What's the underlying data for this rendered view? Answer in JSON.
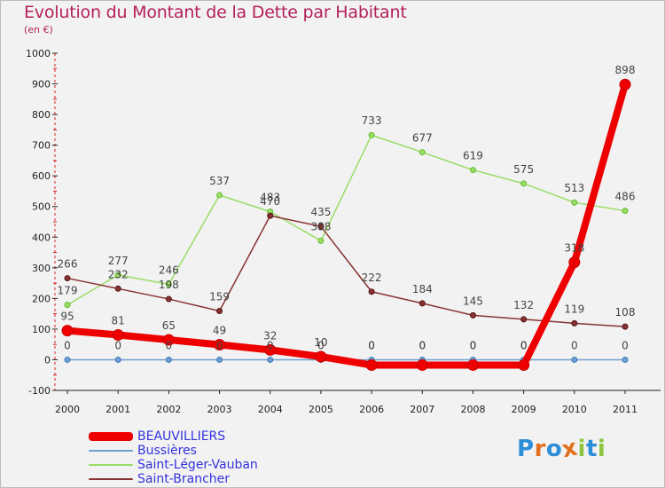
{
  "header": {
    "title": "Evolution du Montant de la Dette par Habitant",
    "subtitle": "(en €)"
  },
  "logo": {
    "text": "Proxiti",
    "letter_colors": [
      "#2d8ed8",
      "#e1711e",
      "#2d8ed8",
      "#e1711e",
      "#8dc63f",
      "#2d8ed8",
      "#8dc63f"
    ]
  },
  "chart_data": {
    "type": "line",
    "x": [
      "2000",
      "2001",
      "2002",
      "2003",
      "2004",
      "2005",
      "2006",
      "2007",
      "2008",
      "2009",
      "2010",
      "2011"
    ],
    "ylim": [
      -100,
      1000
    ],
    "yticks": [
      "-100",
      "0",
      "100",
      "200",
      "300",
      "400",
      "500",
      "600",
      "700",
      "800",
      "900",
      "1000"
    ],
    "grid": false,
    "legend_position": "bottom-left",
    "series": [
      {
        "name": "BEAUVILLIERS",
        "color": "#ee0000",
        "values": [
          95,
          81,
          65,
          49,
          32,
          10,
          0,
          0,
          0,
          0,
          318,
          898
        ],
        "labels": [
          "95",
          "81",
          "65",
          "49",
          "32",
          "10",
          "0",
          "0",
          "0",
          "0",
          "318",
          "898"
        ],
        "plot_offsets": [
          0,
          0,
          0,
          0,
          0,
          0,
          -6,
          -6,
          -6,
          -6,
          0,
          0
        ]
      },
      {
        "name": "Bussières",
        "color": "#6f9fd0",
        "values": [
          0,
          0,
          0,
          0,
          0,
          0,
          0,
          0,
          0,
          0,
          0,
          0
        ],
        "labels": [
          "0",
          "0",
          "0",
          "0",
          "0",
          "0",
          "0",
          "0",
          "0",
          "0",
          "0",
          "0"
        ]
      },
      {
        "name": "Saint-Léger-Vauban",
        "color": "#99dd66",
        "values": [
          179,
          277,
          246,
          537,
          483,
          388,
          733,
          677,
          619,
          575,
          513,
          486
        ],
        "labels": [
          "179",
          "277",
          "246",
          "537",
          "483",
          "388",
          "733",
          "677",
          "619",
          "575",
          "513",
          "486"
        ]
      },
      {
        "name": "Saint-Brancher",
        "color": "#883333",
        "values": [
          266,
          232,
          198,
          159,
          470,
          435,
          222,
          184,
          145,
          132,
          119,
          108
        ],
        "labels": [
          "266",
          "232",
          "198",
          "159",
          "470",
          "435",
          "222",
          "184",
          "145",
          "132",
          "119",
          "108"
        ]
      }
    ]
  }
}
